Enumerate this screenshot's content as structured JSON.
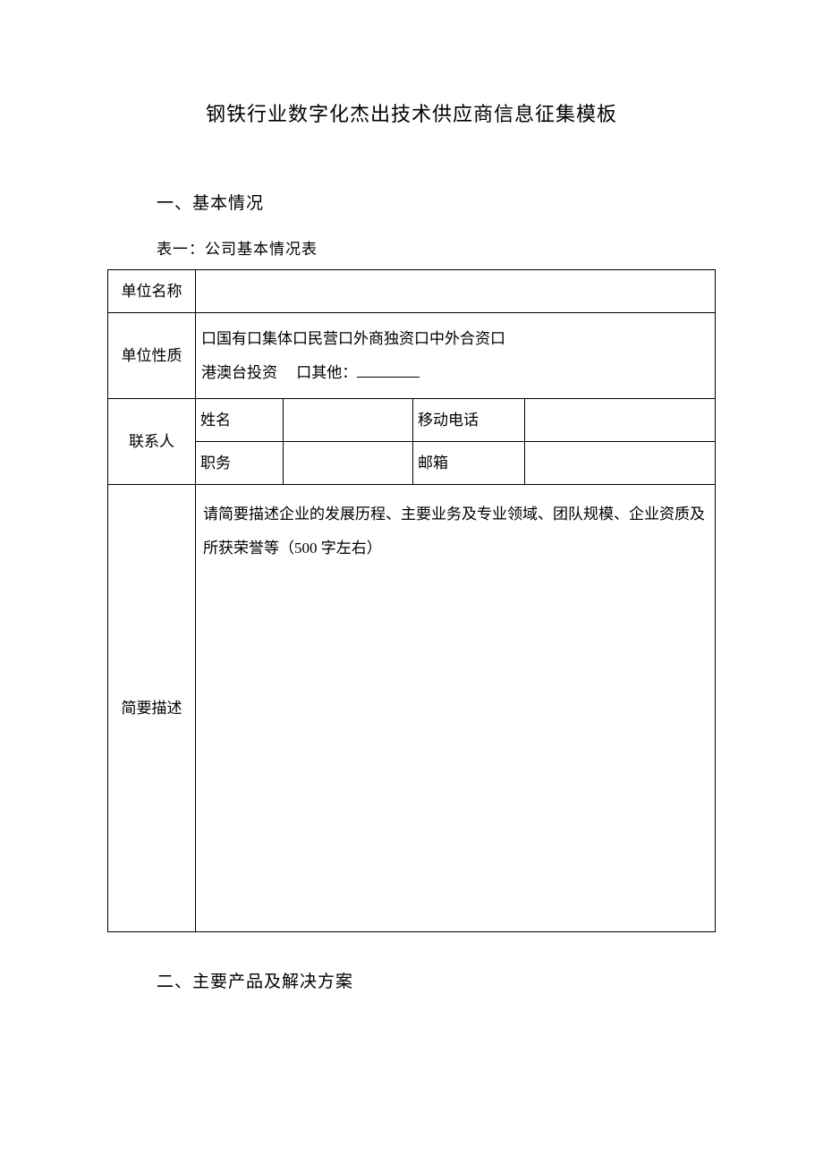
{
  "document": {
    "title": "钢铁行业数字化杰出技术供应商信息征集模板",
    "text_color": "#000000",
    "background_color": "#ffffff",
    "border_color": "#000000",
    "title_fontsize": 22,
    "body_fontsize": 17,
    "heading_fontsize": 19
  },
  "section1": {
    "heading": "一、基本情况",
    "table_caption": "表一：公司基本情况表",
    "labels": {
      "unit_name": "单位名称",
      "unit_type": "单位性质",
      "contact": "联系人",
      "name": "姓名",
      "mobile": "移动电话",
      "position": "职务",
      "email": "邮箱",
      "description": "简要描述"
    },
    "values": {
      "unit_name": "",
      "name": "",
      "mobile": "",
      "position": "",
      "email": "",
      "other_type": ""
    },
    "entity_type": {
      "line1": "口国有口集体口民营口外商独资口中外合资口",
      "line2_prefix": "港澳台投资",
      "line2_other": "口其他："
    },
    "description_prompt": "请简要描述企业的发展历程、主要业务及专业领域、团队规模、企业资质及所获荣誉等（500 字左右）"
  },
  "section2": {
    "heading": "二、主要产品及解决方案"
  }
}
